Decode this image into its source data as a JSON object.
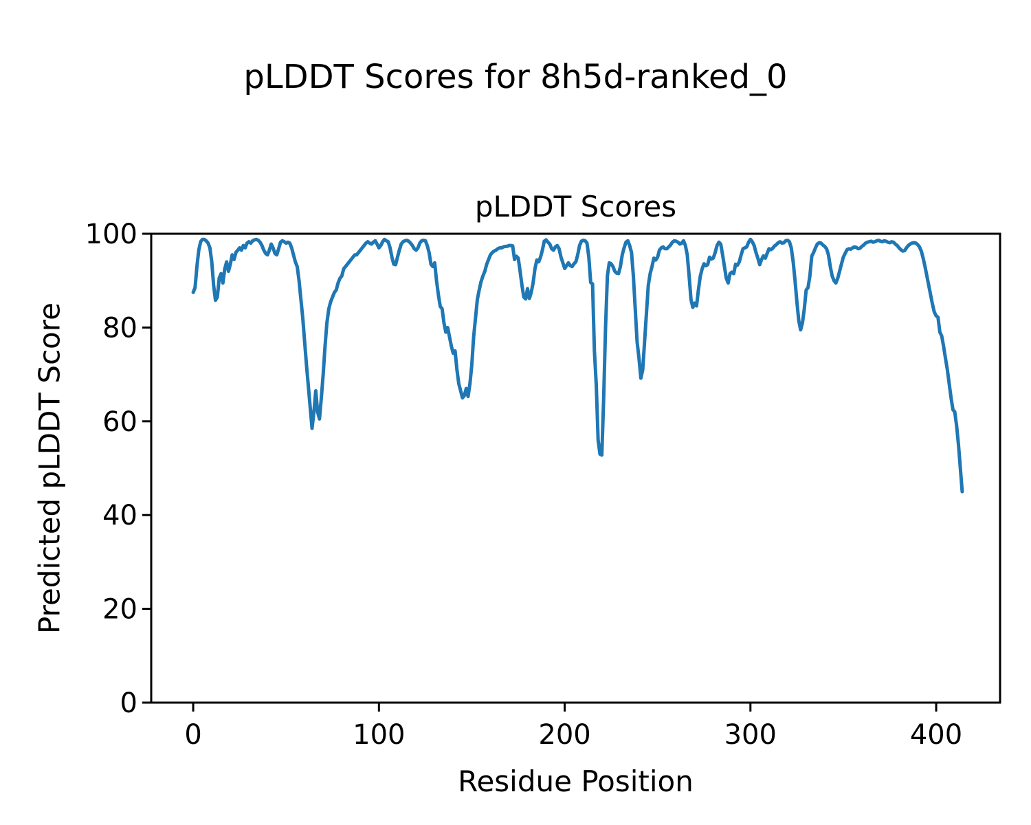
{
  "figure": {
    "suptitle": "pLDDT Scores for 8h5d-ranked_0"
  },
  "chart_data": {
    "type": "line",
    "title": "pLDDT Scores",
    "suptitle": "pLDDT Scores for 8h5d-ranked_0",
    "xlabel": "Residue Position",
    "ylabel": "Predicted pLDDT Score",
    "xlim": [
      -22.6,
      434.4
    ],
    "ylim": [
      0,
      100
    ],
    "xticks": [
      0,
      100,
      200,
      300,
      400
    ],
    "yticks": [
      0,
      20,
      40,
      60,
      80,
      100
    ],
    "grid": false,
    "legend": "none",
    "line_color": "#1f77b4",
    "axis_color": "#000000",
    "series_name": "pLDDT",
    "points": [
      [
        0,
        87.5
      ],
      [
        1,
        88.5
      ],
      [
        2,
        93
      ],
      [
        3,
        96.5
      ],
      [
        4,
        98.3
      ],
      [
        5,
        98.8
      ],
      [
        6,
        98.8
      ],
      [
        7,
        98.5
      ],
      [
        8,
        98
      ],
      [
        9,
        97
      ],
      [
        10,
        94
      ],
      [
        11,
        89
      ],
      [
        12,
        85.8
      ],
      [
        13,
        86.5
      ],
      [
        14,
        90.5
      ],
      [
        15,
        91.5
      ],
      [
        16,
        89.5
      ],
      [
        17,
        92.5
      ],
      [
        18,
        94
      ],
      [
        19,
        92
      ],
      [
        20,
        93.5
      ],
      [
        21,
        95.5
      ],
      [
        22,
        94.5
      ],
      [
        23,
        96
      ],
      [
        24,
        96.5
      ],
      [
        25,
        97
      ],
      [
        26,
        96.5
      ],
      [
        27,
        97.5
      ],
      [
        28,
        97
      ],
      [
        29,
        98
      ],
      [
        30,
        98.3
      ],
      [
        31,
        98
      ],
      [
        32,
        98.5
      ],
      [
        33,
        98.7
      ],
      [
        34,
        98.8
      ],
      [
        35,
        98.6
      ],
      [
        36,
        98.2
      ],
      [
        37,
        97.5
      ],
      [
        38,
        96.5
      ],
      [
        39,
        95.8
      ],
      [
        40,
        95.5
      ],
      [
        41,
        96.5
      ],
      [
        42,
        97.8
      ],
      [
        43,
        97
      ],
      [
        44,
        95.8
      ],
      [
        45,
        95.5
      ],
      [
        46,
        96.8
      ],
      [
        47,
        98.2
      ],
      [
        48,
        98.5
      ],
      [
        49,
        98.3
      ],
      [
        50,
        98
      ],
      [
        51,
        98.2
      ],
      [
        52,
        98
      ],
      [
        53,
        97
      ],
      [
        54,
        95.5
      ],
      [
        55,
        94
      ],
      [
        56,
        93
      ],
      [
        57,
        90
      ],
      [
        58,
        86
      ],
      [
        59,
        82
      ],
      [
        60,
        77
      ],
      [
        61,
        72
      ],
      [
        62,
        67.5
      ],
      [
        63,
        63
      ],
      [
        64,
        58.5
      ],
      [
        65,
        62
      ],
      [
        66,
        66.5
      ],
      [
        67,
        62
      ],
      [
        68,
        60.5
      ],
      [
        69,
        65
      ],
      [
        70,
        70
      ],
      [
        71,
        76
      ],
      [
        72,
        81
      ],
      [
        73,
        84
      ],
      [
        74,
        85.5
      ],
      [
        75,
        86.5
      ],
      [
        76,
        87.5
      ],
      [
        77,
        88
      ],
      [
        78,
        89.5
      ],
      [
        79,
        90.5
      ],
      [
        80,
        91
      ],
      [
        81,
        92.5
      ],
      [
        82,
        93
      ],
      [
        83,
        93.5
      ],
      [
        84,
        94
      ],
      [
        85,
        94.5
      ],
      [
        86,
        95
      ],
      [
        87,
        95.5
      ],
      [
        88,
        95.5
      ],
      [
        89,
        96
      ],
      [
        90,
        96.5
      ],
      [
        91,
        97
      ],
      [
        92,
        97.5
      ],
      [
        93,
        98
      ],
      [
        94,
        98.3
      ],
      [
        95,
        98
      ],
      [
        96,
        97.8
      ],
      [
        97,
        98.2
      ],
      [
        98,
        98.5
      ],
      [
        99,
        97.8
      ],
      [
        100,
        97
      ],
      [
        101,
        97.5
      ],
      [
        102,
        98.3
      ],
      [
        103,
        98.8
      ],
      [
        104,
        98.5
      ],
      [
        105,
        98.3
      ],
      [
        106,
        97
      ],
      [
        107,
        95
      ],
      [
        108,
        93.5
      ],
      [
        109,
        93.4
      ],
      [
        110,
        95
      ],
      [
        111,
        96.5
      ],
      [
        112,
        97.8
      ],
      [
        113,
        98.3
      ],
      [
        114,
        98.5
      ],
      [
        115,
        98.6
      ],
      [
        116,
        98.4
      ],
      [
        117,
        98
      ],
      [
        118,
        97.5
      ],
      [
        119,
        96.8
      ],
      [
        120,
        96.5
      ],
      [
        121,
        97
      ],
      [
        122,
        98
      ],
      [
        123,
        98.5
      ],
      [
        124,
        98.6
      ],
      [
        125,
        98.5
      ],
      [
        126,
        97.5
      ],
      [
        127,
        96
      ],
      [
        128,
        93.5
      ],
      [
        129,
        93
      ],
      [
        130,
        93.8
      ],
      [
        131,
        90
      ],
      [
        132,
        87
      ],
      [
        133,
        84.5
      ],
      [
        134,
        84
      ],
      [
        135,
        81
      ],
      [
        136,
        79
      ],
      [
        137,
        80
      ],
      [
        138,
        78
      ],
      [
        139,
        76
      ],
      [
        140,
        74.5
      ],
      [
        141,
        75
      ],
      [
        142,
        71
      ],
      [
        143,
        68
      ],
      [
        144,
        66.5
      ],
      [
        145,
        65
      ],
      [
        146,
        65.5
      ],
      [
        147,
        67
      ],
      [
        148,
        65.3
      ],
      [
        149,
        68
      ],
      [
        150,
        72
      ],
      [
        151,
        78
      ],
      [
        152,
        82
      ],
      [
        153,
        86
      ],
      [
        154,
        88
      ],
      [
        155,
        89.8
      ],
      [
        156,
        91
      ],
      [
        157,
        92
      ],
      [
        158,
        93.5
      ],
      [
        159,
        94.5
      ],
      [
        160,
        95.5
      ],
      [
        161,
        96
      ],
      [
        162,
        96.3
      ],
      [
        163,
        96.5
      ],
      [
        164,
        96.8
      ],
      [
        165,
        97
      ],
      [
        166,
        97
      ],
      [
        167,
        97.2
      ],
      [
        168,
        97.3
      ],
      [
        169,
        97.3
      ],
      [
        170,
        97.5
      ],
      [
        171,
        97.5
      ],
      [
        172,
        97.4
      ],
      [
        173,
        94.5
      ],
      [
        174,
        95.2
      ],
      [
        175,
        94.8
      ],
      [
        176,
        92
      ],
      [
        177,
        89
      ],
      [
        178,
        86.5
      ],
      [
        179,
        86.1
      ],
      [
        180,
        88.3
      ],
      [
        181,
        86.2
      ],
      [
        182,
        87.5
      ],
      [
        183,
        89.5
      ],
      [
        184,
        92.5
      ],
      [
        185,
        94.4
      ],
      [
        186,
        94
      ],
      [
        187,
        95
      ],
      [
        188,
        96.5
      ],
      [
        189,
        98.4
      ],
      [
        190,
        98.7
      ],
      [
        191,
        98.2
      ],
      [
        192,
        97.8
      ],
      [
        193,
        96.8
      ],
      [
        194,
        96.5
      ],
      [
        195,
        97.2
      ],
      [
        196,
        97.5
      ],
      [
        197,
        96.8
      ],
      [
        198,
        95
      ],
      [
        199,
        93.8
      ],
      [
        200,
        92.6
      ],
      [
        201,
        93.2
      ],
      [
        202,
        93.8
      ],
      [
        203,
        93.2
      ],
      [
        204,
        93
      ],
      [
        205,
        93.6
      ],
      [
        206,
        94
      ],
      [
        207,
        95.5
      ],
      [
        208,
        97.5
      ],
      [
        209,
        98.4
      ],
      [
        210,
        98.6
      ],
      [
        211,
        98.5
      ],
      [
        212,
        98
      ],
      [
        213,
        95
      ],
      [
        214,
        89.6
      ],
      [
        215,
        89.3
      ],
      [
        216,
        75
      ],
      [
        217,
        67.8
      ],
      [
        218,
        56
      ],
      [
        219,
        53
      ],
      [
        220,
        52.8
      ],
      [
        221,
        65
      ],
      [
        222,
        80
      ],
      [
        223,
        91
      ],
      [
        224,
        93.8
      ],
      [
        225,
        93.6
      ],
      [
        226,
        93
      ],
      [
        227,
        92
      ],
      [
        228,
        91.6
      ],
      [
        229,
        91.5
      ],
      [
        230,
        93
      ],
      [
        231,
        95.5
      ],
      [
        232,
        97
      ],
      [
        233,
        98.2
      ],
      [
        234,
        98.5
      ],
      [
        235,
        97.5
      ],
      [
        236,
        96
      ],
      [
        237,
        91
      ],
      [
        238,
        84
      ],
      [
        239,
        77
      ],
      [
        240,
        73.4
      ],
      [
        241,
        69.2
      ],
      [
        242,
        71
      ],
      [
        243,
        77
      ],
      [
        244,
        83
      ],
      [
        245,
        89
      ],
      [
        246,
        91.5
      ],
      [
        247,
        93
      ],
      [
        248,
        94.8
      ],
      [
        249,
        94.4
      ],
      [
        250,
        95
      ],
      [
        251,
        96.5
      ],
      [
        252,
        97
      ],
      [
        253,
        97.2
      ],
      [
        254,
        96.8
      ],
      [
        255,
        96.8
      ],
      [
        256,
        97.2
      ],
      [
        257,
        97.6
      ],
      [
        258,
        98.2
      ],
      [
        259,
        98.5
      ],
      [
        260,
        98.4
      ],
      [
        261,
        98.2
      ],
      [
        262,
        97.8
      ],
      [
        263,
        98
      ],
      [
        264,
        98.5
      ],
      [
        265,
        97.5
      ],
      [
        266,
        95.5
      ],
      [
        267,
        91
      ],
      [
        268,
        86
      ],
      [
        269,
        84.3
      ],
      [
        270,
        85.2
      ],
      [
        271,
        84.6
      ],
      [
        272,
        88
      ],
      [
        273,
        90.9
      ],
      [
        274,
        92.5
      ],
      [
        275,
        93.6
      ],
      [
        276,
        93.2
      ],
      [
        277,
        93.4
      ],
      [
        278,
        95
      ],
      [
        279,
        94.6
      ],
      [
        280,
        94.8
      ],
      [
        281,
        96
      ],
      [
        282,
        97.5
      ],
      [
        283,
        98.2
      ],
      [
        284,
        97.8
      ],
      [
        285,
        95.5
      ],
      [
        286,
        93
      ],
      [
        287,
        90.5
      ],
      [
        288,
        89.5
      ],
      [
        289,
        91.5
      ],
      [
        290,
        91.8
      ],
      [
        291,
        91.5
      ],
      [
        292,
        93.5
      ],
      [
        293,
        93.3
      ],
      [
        294,
        94
      ],
      [
        295,
        95.5
      ],
      [
        296,
        96.8
      ],
      [
        297,
        97
      ],
      [
        298,
        97.2
      ],
      [
        299,
        98.2
      ],
      [
        300,
        98.8
      ],
      [
        301,
        98.3
      ],
      [
        302,
        97.5
      ],
      [
        303,
        96
      ],
      [
        304,
        94.8
      ],
      [
        305,
        93.4
      ],
      [
        306,
        94.5
      ],
      [
        307,
        95.3
      ],
      [
        308,
        94.8
      ],
      [
        309,
        95.8
      ],
      [
        310,
        96.8
      ],
      [
        311,
        96.6
      ],
      [
        312,
        96.9
      ],
      [
        313,
        97.4
      ],
      [
        314,
        97.7
      ],
      [
        315,
        98.1
      ],
      [
        316,
        98.3
      ],
      [
        317,
        98
      ],
      [
        318,
        98.1
      ],
      [
        319,
        98.5
      ],
      [
        320,
        98.6
      ],
      [
        321,
        98.3
      ],
      [
        322,
        97
      ],
      [
        323,
        94
      ],
      [
        324,
        90
      ],
      [
        325,
        85.5
      ],
      [
        326,
        81.5
      ],
      [
        327,
        79.5
      ],
      [
        328,
        81
      ],
      [
        329,
        84
      ],
      [
        330,
        88
      ],
      [
        331,
        88.5
      ],
      [
        332,
        91
      ],
      [
        333,
        95.2
      ],
      [
        334,
        96
      ],
      [
        335,
        97
      ],
      [
        336,
        97.8
      ],
      [
        337,
        98.1
      ],
      [
        338,
        98
      ],
      [
        339,
        97.6
      ],
      [
        340,
        97.3
      ],
      [
        341,
        96.8
      ],
      [
        342,
        95.5
      ],
      [
        343,
        93
      ],
      [
        344,
        91
      ],
      [
        345,
        90
      ],
      [
        346,
        89.5
      ],
      [
        347,
        90.5
      ],
      [
        348,
        92
      ],
      [
        349,
        93.5
      ],
      [
        350,
        95
      ],
      [
        351,
        95.8
      ],
      [
        352,
        96.6
      ],
      [
        353,
        96.8
      ],
      [
        354,
        96.7
      ],
      [
        355,
        97
      ],
      [
        356,
        97.2
      ],
      [
        357,
        97.1
      ],
      [
        358,
        96.8
      ],
      [
        359,
        96.9
      ],
      [
        360,
        97.3
      ],
      [
        361,
        97.6
      ],
      [
        362,
        98
      ],
      [
        363,
        98.2
      ],
      [
        364,
        98.3
      ],
      [
        365,
        98.4
      ],
      [
        366,
        98.2
      ],
      [
        367,
        98.3
      ],
      [
        368,
        98.5
      ],
      [
        369,
        98.6
      ],
      [
        370,
        98.4
      ],
      [
        371,
        98.3
      ],
      [
        372,
        98.5
      ],
      [
        373,
        98.4
      ],
      [
        374,
        98.2
      ],
      [
        375,
        98.1
      ],
      [
        376,
        98.3
      ],
      [
        377,
        98.2
      ],
      [
        378,
        97.8
      ],
      [
        379,
        97.5
      ],
      [
        380,
        97
      ],
      [
        381,
        96.6
      ],
      [
        382,
        96.3
      ],
      [
        383,
        96.4
      ],
      [
        384,
        97
      ],
      [
        385,
        97.5
      ],
      [
        386,
        97.8
      ],
      [
        387,
        98
      ],
      [
        388,
        98.1
      ],
      [
        389,
        98
      ],
      [
        390,
        97.7
      ],
      [
        391,
        97.2
      ],
      [
        392,
        96.3
      ],
      [
        393,
        94.8
      ],
      [
        394,
        93
      ],
      [
        395,
        91
      ],
      [
        396,
        89
      ],
      [
        397,
        87
      ],
      [
        398,
        85
      ],
      [
        399,
        83.3
      ],
      [
        400,
        82.5
      ],
      [
        401,
        82.2
      ],
      [
        402,
        79
      ],
      [
        403,
        78.2
      ],
      [
        404,
        76
      ],
      [
        405,
        73.5
      ],
      [
        406,
        71
      ],
      [
        407,
        68
      ],
      [
        408,
        65
      ],
      [
        409,
        62.5
      ],
      [
        410,
        62
      ],
      [
        411,
        59
      ],
      [
        412,
        55
      ],
      [
        413,
        50
      ],
      [
        414,
        45
      ]
    ]
  }
}
